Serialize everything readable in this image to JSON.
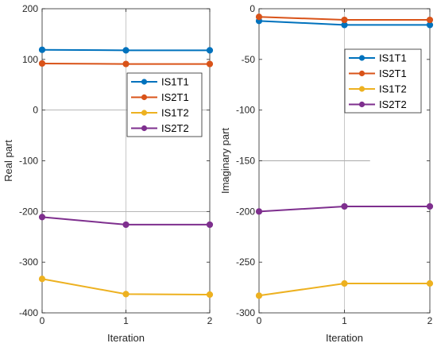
{
  "chart_data": [
    {
      "type": "line",
      "xlabel": "Iteration",
      "ylabel": "Real part",
      "x": [
        0,
        1,
        2
      ],
      "xticks": [
        "0",
        "1",
        "2"
      ],
      "ylim": [
        -400,
        200
      ],
      "yticks": [
        "200",
        "100",
        "0",
        "-100",
        "-200",
        "-300",
        "-400"
      ],
      "grid": false,
      "legend": "right, upper-middle",
      "series": [
        {
          "name": "IS1T1",
          "color": "#0072BD",
          "values": [
            119,
            118,
            118
          ]
        },
        {
          "name": "IS2T1",
          "color": "#D95319",
          "values": [
            92,
            91,
            91
          ]
        },
        {
          "name": "IS1T2",
          "color": "#EDB120",
          "values": [
            -333,
            -363,
            -364
          ]
        },
        {
          "name": "IS2T2",
          "color": "#7E2F8E",
          "values": [
            -211,
            -226,
            -226
          ]
        }
      ]
    },
    {
      "type": "line",
      "xlabel": "Iteration",
      "ylabel": "Imaginary part",
      "x": [
        0,
        1,
        2
      ],
      "xticks": [
        "0",
        "1",
        "2"
      ],
      "ylim": [
        -300,
        0
      ],
      "yticks": [
        "0",
        "-50",
        "-100",
        "-150",
        "-200",
        "-250",
        "-300"
      ],
      "grid": false,
      "legend": "right, upper",
      "series": [
        {
          "name": "IS1T1",
          "color": "#0072BD",
          "values": [
            -12,
            -16,
            -16
          ]
        },
        {
          "name": "IS2T1",
          "color": "#D95319",
          "values": [
            -8,
            -11,
            -11
          ]
        },
        {
          "name": "IS1T2",
          "color": "#EDB120",
          "values": [
            -283,
            -271,
            -271
          ]
        },
        {
          "name": "IS2T2",
          "color": "#7E2F8E",
          "values": [
            -200,
            -195,
            -195
          ]
        }
      ]
    }
  ]
}
